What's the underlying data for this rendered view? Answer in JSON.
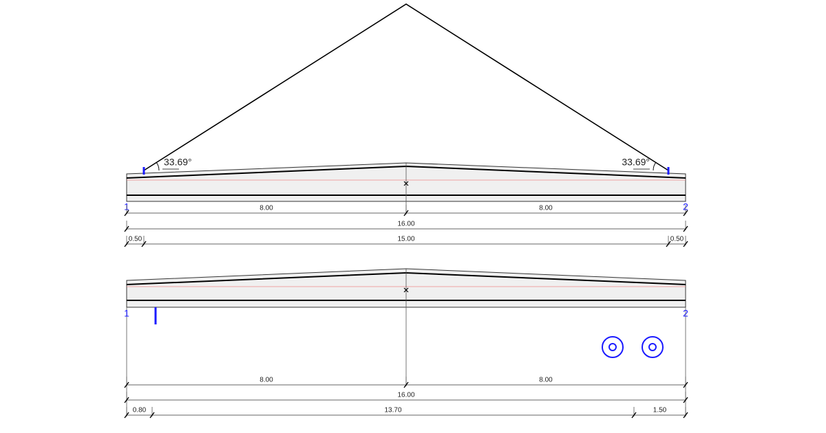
{
  "top_view": {
    "angles": [
      "33.69°",
      "33.69°"
    ],
    "nodes": [
      "1",
      "2"
    ],
    "dimensions": [
      [
        "8.00",
        "8.00"
      ],
      [
        "16.00"
      ],
      [
        "0.50",
        "15.00",
        "0.50"
      ]
    ]
  },
  "bottom_view": {
    "nodes": [
      "1",
      "2"
    ],
    "dimensions": [
      [
        "8.00",
        "8.00"
      ],
      [
        "16.00"
      ],
      [
        "0.80",
        "13.70",
        "1.50"
      ]
    ]
  }
}
